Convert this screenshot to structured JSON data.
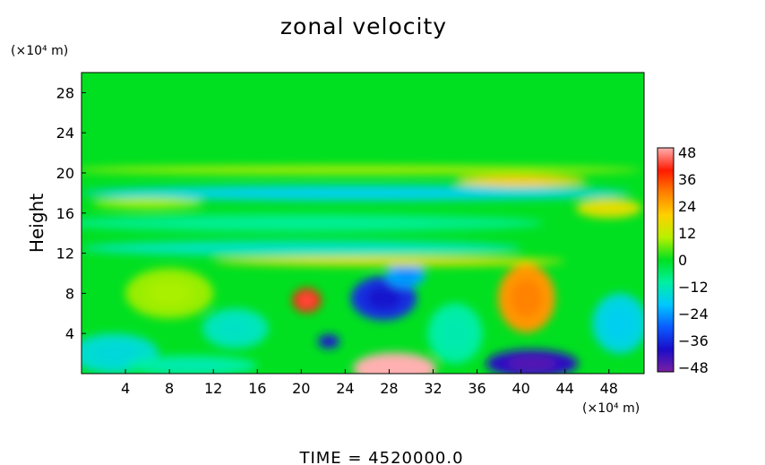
{
  "chart_data": {
    "type": "heatmap",
    "title": "zonal velocity",
    "xlabel": "",
    "ylabel": "Height",
    "x_unit": "(×10⁴ m)",
    "y_unit": "(×10⁴ m)",
    "xlim": [
      0,
      51.2
    ],
    "ylim": [
      0,
      30
    ],
    "x_ticks": [
      4,
      8,
      12,
      16,
      20,
      24,
      28,
      32,
      36,
      40,
      44,
      48
    ],
    "y_ticks": [
      4,
      8,
      12,
      16,
      20,
      24,
      28
    ],
    "x_tick_labels": [
      "4",
      "8",
      "12",
      "16",
      "20",
      "24",
      "28",
      "32",
      "36",
      "40",
      "44",
      "48"
    ],
    "y_tick_labels": [
      "4",
      "8",
      "12",
      "16",
      "20",
      "24",
      "28"
    ],
    "colorbar": {
      "min": -48,
      "max": 48,
      "ticks": [
        48,
        36,
        24,
        12,
        0,
        -12,
        -24,
        -36,
        -48
      ],
      "tick_labels": [
        "48",
        "36",
        "24",
        "12",
        "0",
        "−12",
        "−24",
        "−36",
        "−48"
      ],
      "colors": [
        "#7b1fa2",
        "#1a0cc8",
        "#0a5cff",
        "#00c8ff",
        "#00f0a0",
        "#00e020",
        "#b8f000",
        "#ffd000",
        "#ff8000",
        "#ff1a00",
        "#ffb0b0"
      ]
    },
    "background_value": 0,
    "features": [
      {
        "x": 20.5,
        "y": 7.3,
        "value": 38,
        "rx": 1.3,
        "ry": 1.2
      },
      {
        "x": 22.5,
        "y": 3.2,
        "value": -36,
        "rx": 1.0,
        "ry": 0.7
      },
      {
        "x": 27.5,
        "y": 7.5,
        "value": -34,
        "rx": 3.0,
        "ry": 2.2
      },
      {
        "x": 29.5,
        "y": 9.8,
        "value": -22,
        "rx": 1.8,
        "ry": 1.2
      },
      {
        "x": 28.5,
        "y": 0.5,
        "value": 48,
        "rx": 3.8,
        "ry": 1.6
      },
      {
        "x": 41.0,
        "y": 1.0,
        "value": -40,
        "rx": 4.2,
        "ry": 1.4
      },
      {
        "x": 40.5,
        "y": 7.5,
        "value": 26,
        "rx": 2.6,
        "ry": 3.4
      },
      {
        "x": 8.0,
        "y": 8.0,
        "value": 8,
        "rx": 4.0,
        "ry": 2.5
      },
      {
        "x": 3.0,
        "y": 2.0,
        "value": -14,
        "rx": 4.0,
        "ry": 2.0
      },
      {
        "x": 10.0,
        "y": 0.8,
        "value": -10,
        "rx": 6.0,
        "ry": 1.0
      },
      {
        "x": 49.0,
        "y": 5.0,
        "value": -16,
        "rx": 2.5,
        "ry": 3.0
      },
      {
        "x": 14.0,
        "y": 4.5,
        "value": -12,
        "rx": 3.0,
        "ry": 2.0
      },
      {
        "x": 34.0,
        "y": 4.0,
        "value": -10,
        "rx": 2.5,
        "ry": 3.0
      },
      {
        "x": 25.0,
        "y": 18.0,
        "value": -16,
        "rx": 25.0,
        "ry": 0.8
      },
      {
        "x": 20.0,
        "y": 12.5,
        "value": -12,
        "rx": 20.0,
        "ry": 0.8
      },
      {
        "x": 20.0,
        "y": 15.0,
        "value": -8,
        "rx": 22.0,
        "ry": 0.9
      },
      {
        "x": 40.0,
        "y": 19.2,
        "value": 18,
        "rx": 6.0,
        "ry": 0.6
      },
      {
        "x": 28.0,
        "y": 11.2,
        "value": 14,
        "rx": 16.0,
        "ry": 0.5
      },
      {
        "x": 25.0,
        "y": 20.3,
        "value": 10,
        "rx": 26.0,
        "ry": 0.4
      },
      {
        "x": 48.0,
        "y": 16.5,
        "value": 14,
        "rx": 3.0,
        "ry": 1.0
      },
      {
        "x": 6.0,
        "y": 17.0,
        "value": 8,
        "rx": 5.0,
        "ry": 0.6
      }
    ],
    "footer": "TIME  =  4520000.0"
  }
}
